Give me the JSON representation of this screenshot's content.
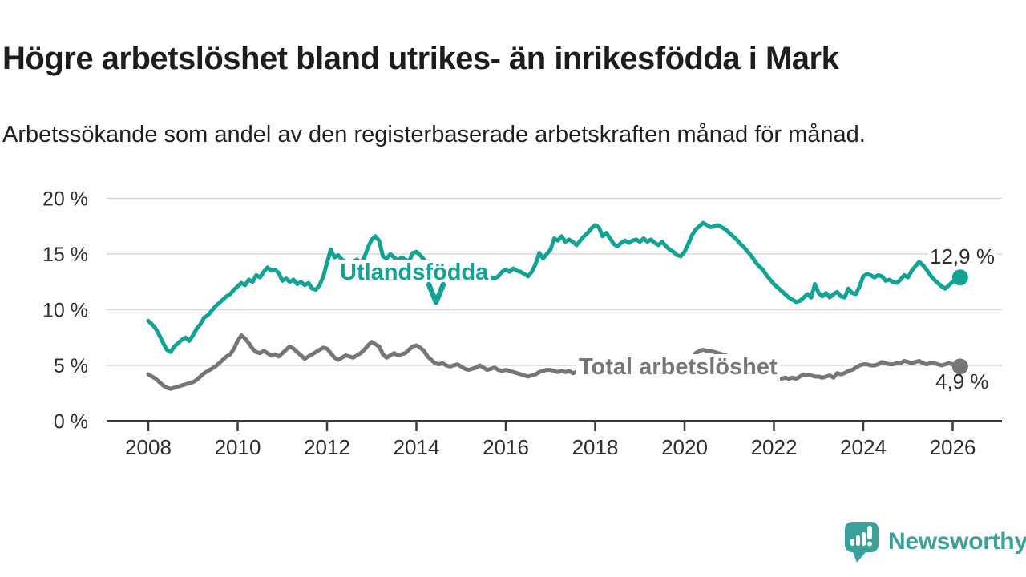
{
  "title": "Högre arbetslöshet bland utrikes- än inrikesfödda i Mark",
  "subtitle": "Arbetssökande som andel av den registerbaserade arbetskraften månad för månad.",
  "branding": {
    "logo_text": "Newsworthy",
    "logo_icon": "bar-chart-speech-bubble-icon"
  },
  "colors": {
    "foreign_born": "#12A394",
    "total": "#767676",
    "grid": "#D8D8D8",
    "axis": "#3A3A3A",
    "tick_text": "#2E2E2E",
    "title_text": "#1D1D20",
    "brand_teal": "#3BA199",
    "background": "#FFFFFF"
  },
  "chart_data": {
    "type": "line",
    "title": "Högre arbetslöshet bland utrikes- än inrikesfödda i Mark",
    "subtitle": "Arbetssökande som andel av den registerbaserade arbetskraften månad för månad.",
    "grid": "horizontal",
    "legend_position": "inline-labels",
    "ylim": [
      0,
      20
    ],
    "y_tick_values": [
      0,
      5,
      10,
      15,
      20
    ],
    "y_tick_labels": [
      "0 %",
      "5 %",
      "10 %",
      "15 %",
      "20 %"
    ],
    "x_tick_years": [
      2008,
      2010,
      2012,
      2014,
      2016,
      2018,
      2020,
      2022,
      2024,
      2026
    ],
    "x_tick_labels": [
      "2008",
      "2010",
      "2012",
      "2014",
      "2016",
      "2018",
      "2020",
      "2022",
      "2024",
      "2026"
    ],
    "x_axis_range_years": [
      2007.07,
      2027.1
    ],
    "x_start_year": 2008.0,
    "points_per_year": 12,
    "series": [
      {
        "name": "Utlandsfödda",
        "color": "#12A394",
        "end_label": "12,9 %",
        "final_value": 12.9,
        "values": [
          9.0,
          8.7,
          8.3,
          7.7,
          7.0,
          6.4,
          6.2,
          6.7,
          7.0,
          7.3,
          7.5,
          7.2,
          7.7,
          8.3,
          8.7,
          9.3,
          9.5,
          9.9,
          10.3,
          10.6,
          10.9,
          11.2,
          11.4,
          11.8,
          12.1,
          12.4,
          12.2,
          12.7,
          12.5,
          13.1,
          12.9,
          13.4,
          13.8,
          13.5,
          13.6,
          13.3,
          12.6,
          12.8,
          12.5,
          12.7,
          12.3,
          12.5,
          12.2,
          12.4,
          11.9,
          11.8,
          12.2,
          13.0,
          14.2,
          15.4,
          14.7,
          14.9,
          14.5,
          14.3,
          14.1,
          14.3,
          14.5,
          14.2,
          14.7,
          15.6,
          16.3,
          16.6,
          16.2,
          14.8,
          14.6,
          15.0,
          14.7,
          14.4,
          14.7,
          14.5,
          14.3,
          15.1,
          15.2,
          14.9,
          14.5,
          14.1,
          13.7,
          13.3,
          13.0,
          12.8,
          12.9,
          13.0,
          13.1,
          13.0,
          13.1,
          13.3,
          13.5,
          13.6,
          13.4,
          13.5,
          13.3,
          13.1,
          12.9,
          12.8,
          13.0,
          13.4,
          13.6,
          13.4,
          13.7,
          13.5,
          13.4,
          13.2,
          13.0,
          13.4,
          14.1,
          15.1,
          14.6,
          15.0,
          15.4,
          16.4,
          16.2,
          16.6,
          16.1,
          16.3,
          16.1,
          15.8,
          16.2,
          16.6,
          16.9,
          17.3,
          17.6,
          17.4,
          16.6,
          16.9,
          16.4,
          15.9,
          15.7,
          16.0,
          16.2,
          16.0,
          16.2,
          16.3,
          16.1,
          16.4,
          16.1,
          16.3,
          16.0,
          15.8,
          16.1,
          15.7,
          15.4,
          15.2,
          14.9,
          14.8,
          15.2,
          15.9,
          16.7,
          17.2,
          17.5,
          17.8,
          17.6,
          17.4,
          17.5,
          17.6,
          17.4,
          17.2,
          16.9,
          16.6,
          16.3,
          15.9,
          15.6,
          15.2,
          14.8,
          14.3,
          13.9,
          13.6,
          13.1,
          12.7,
          12.3,
          12.0,
          11.7,
          11.4,
          11.1,
          10.9,
          10.7,
          10.8,
          11.1,
          11.4,
          11.1,
          12.3,
          11.5,
          11.2,
          11.5,
          11.1,
          11.4,
          11.6,
          11.2,
          11.1,
          11.9,
          11.5,
          11.4,
          12.1,
          13.0,
          13.2,
          13.1,
          12.9,
          13.1,
          13.0,
          12.6,
          12.7,
          12.5,
          12.4,
          12.7,
          13.1,
          12.9,
          13.5,
          13.9,
          14.3,
          14.0,
          13.6,
          13.1,
          12.7,
          12.4,
          12.1,
          11.9,
          12.2,
          12.5,
          12.7,
          12.9
        ]
      },
      {
        "name": "Total arbetslöshet",
        "color": "#767676",
        "end_label": "4,9 %",
        "final_value": 4.9,
        "values": [
          4.2,
          4.0,
          3.8,
          3.5,
          3.2,
          3.0,
          2.9,
          3.0,
          3.1,
          3.2,
          3.3,
          3.4,
          3.5,
          3.7,
          4.0,
          4.3,
          4.5,
          4.7,
          4.9,
          5.2,
          5.5,
          5.8,
          6.0,
          6.5,
          7.2,
          7.7,
          7.4,
          7.0,
          6.5,
          6.2,
          6.1,
          6.3,
          6.1,
          5.9,
          6.0,
          5.8,
          6.1,
          6.4,
          6.7,
          6.5,
          6.2,
          5.9,
          5.6,
          5.8,
          6.0,
          6.2,
          6.4,
          6.6,
          6.5,
          6.1,
          5.7,
          5.5,
          5.7,
          5.9,
          5.8,
          5.7,
          5.9,
          6.1,
          6.4,
          6.8,
          7.1,
          6.9,
          6.7,
          6.0,
          5.7,
          5.9,
          6.1,
          5.9,
          6.0,
          6.1,
          6.4,
          6.7,
          6.8,
          6.6,
          6.3,
          5.8,
          5.5,
          5.2,
          5.1,
          5.2,
          5.0,
          4.9,
          5.0,
          5.1,
          4.9,
          4.7,
          4.6,
          4.7,
          4.8,
          5.0,
          4.8,
          4.6,
          4.7,
          4.8,
          4.6,
          4.5,
          4.6,
          4.5,
          4.4,
          4.3,
          4.2,
          4.1,
          4.0,
          4.1,
          4.2,
          4.4,
          4.5,
          4.6,
          4.6,
          4.5,
          4.4,
          4.5,
          4.4,
          4.5,
          4.3,
          4.4,
          4.3,
          4.3,
          4.2,
          4.2,
          4.2,
          4.1,
          4.1,
          4.0,
          4.0,
          4.0,
          3.9,
          3.9,
          4.0,
          4.0,
          3.9,
          3.9,
          3.9,
          4.0,
          4.0,
          4.1,
          4.1,
          4.2,
          4.2,
          4.3,
          4.3,
          4.4,
          4.4,
          4.5,
          4.7,
          5.1,
          5.7,
          6.1,
          6.3,
          6.4,
          6.3,
          6.3,
          6.2,
          6.1,
          6.0,
          5.9,
          5.8,
          5.6,
          5.4,
          5.2,
          5.0,
          4.8,
          4.6,
          4.5,
          4.3,
          4.2,
          4.1,
          4.0,
          3.9,
          3.8,
          3.8,
          3.9,
          3.8,
          3.9,
          3.8,
          4.0,
          4.2,
          4.1,
          4.1,
          4.0,
          4.0,
          3.9,
          4.0,
          4.1,
          3.9,
          4.3,
          4.2,
          4.3,
          4.5,
          4.6,
          4.8,
          5.0,
          5.1,
          5.1,
          5.0,
          5.0,
          5.1,
          5.3,
          5.2,
          5.1,
          5.1,
          5.2,
          5.2,
          5.4,
          5.3,
          5.2,
          5.3,
          5.4,
          5.2,
          5.1,
          5.2,
          5.2,
          5.1,
          5.0,
          5.1,
          5.2,
          5.1,
          5.0,
          4.9
        ]
      }
    ]
  }
}
